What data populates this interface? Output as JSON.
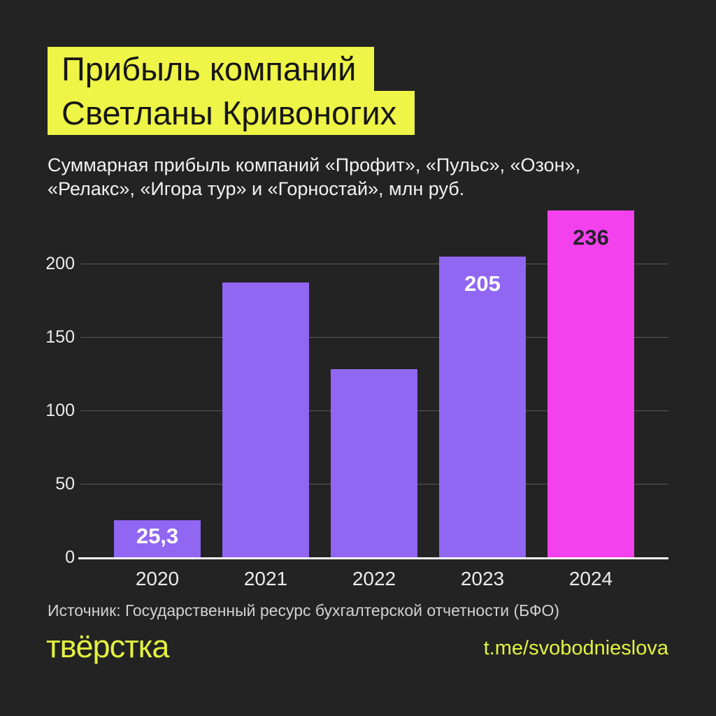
{
  "colors": {
    "background": "#232323",
    "title_highlight": "#eef546",
    "title_text": "#161616",
    "bar_purple": "#9066f2",
    "bar_magenta": "#f441ee",
    "footer_yellow": "#e3f23e",
    "gridline": "#5a5a5a",
    "axis_line": "#f5f5f5",
    "light_text": "#f2f2f2"
  },
  "title": {
    "line1": "Прибыль компаний",
    "line2": "Светланы Кривоногих"
  },
  "subtitle": {
    "line1": "Суммарная прибыль компаний «Профит», «Пульс», «Озон»,",
    "line2": "«Релакс», «Игора тур» и «Горностай», млн руб."
  },
  "chart_data": {
    "type": "bar",
    "title": "Прибыль компаний Светланы Кривоногих",
    "subtitle": "Суммарная прибыль компаний «Профит», «Пульс», «Озон», «Релакс», «Игора тур» и «Горностай», млн руб.",
    "unit": "млн руб.",
    "categories": [
      "2020",
      "2021",
      "2022",
      "2023",
      "2024"
    ],
    "values": [
      25.3,
      187,
      128,
      205,
      236
    ],
    "bar_labels": [
      "25,3",
      "",
      "",
      "205",
      "236"
    ],
    "bar_colors": [
      "#9066f2",
      "#9066f2",
      "#9066f2",
      "#9066f2",
      "#f441ee"
    ],
    "bar_label_colors": [
      "#ffffff",
      "",
      "",
      "#ffffff",
      "#27222b"
    ],
    "yticks": [
      0,
      50,
      100,
      150,
      200
    ],
    "ylim": [
      0,
      240
    ],
    "grid": true,
    "legend": false,
    "xlabel": "",
    "ylabel": ""
  },
  "source": "Источник: Государственный ресурс бухгалтерской отчетности (БФО)",
  "footer": {
    "logo_text": "твёрстка",
    "handle": "t.me/svobodnieslova"
  }
}
